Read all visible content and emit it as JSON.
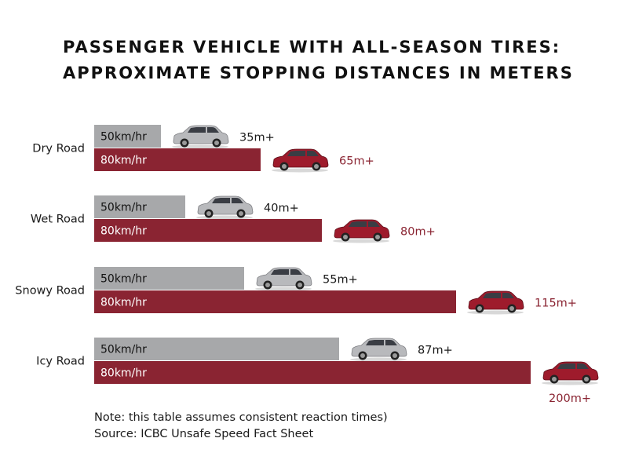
{
  "title_lines": [
    "PASSENGER VEHICLE WITH ALL-SEASON TIRES:",
    "APPROXIMATE STOPPING DISTANCES IN METERS"
  ],
  "notes": {
    "note": "Note: this table assumes consistent reaction times)",
    "source": "Source: ICBC Unsafe Speed Fact Sheet"
  },
  "colors": {
    "speed_50": "#a7a8aa",
    "speed_80": "#8a2432",
    "label_80": "#8a2432",
    "car_silver": "#b8b9bc",
    "car_red": "#9e1b2c"
  },
  "chart_data": {
    "type": "bar",
    "orientation": "horizontal",
    "title": "PASSENGER VEHICLE WITH ALL-SEASON TIRES: APPROXIMATE STOPPING DISTANCES IN METERS",
    "categories": [
      "Dry Road",
      "Wet Road",
      "Snowy Road",
      "Icy Road"
    ],
    "series": [
      {
        "name": "50km/hr",
        "values": [
          35,
          40,
          55,
          87
        ],
        "labels": [
          "35m+",
          "40m+",
          "55m+",
          "87m+"
        ],
        "icon": "silver-suv-icon"
      },
      {
        "name": "80km/hr",
        "values": [
          65,
          80,
          115,
          200
        ],
        "labels": [
          "65m+",
          "80m+",
          "115m+",
          "200m+"
        ],
        "icon": "red-suv-icon"
      }
    ],
    "grid": false,
    "legend": "none"
  }
}
